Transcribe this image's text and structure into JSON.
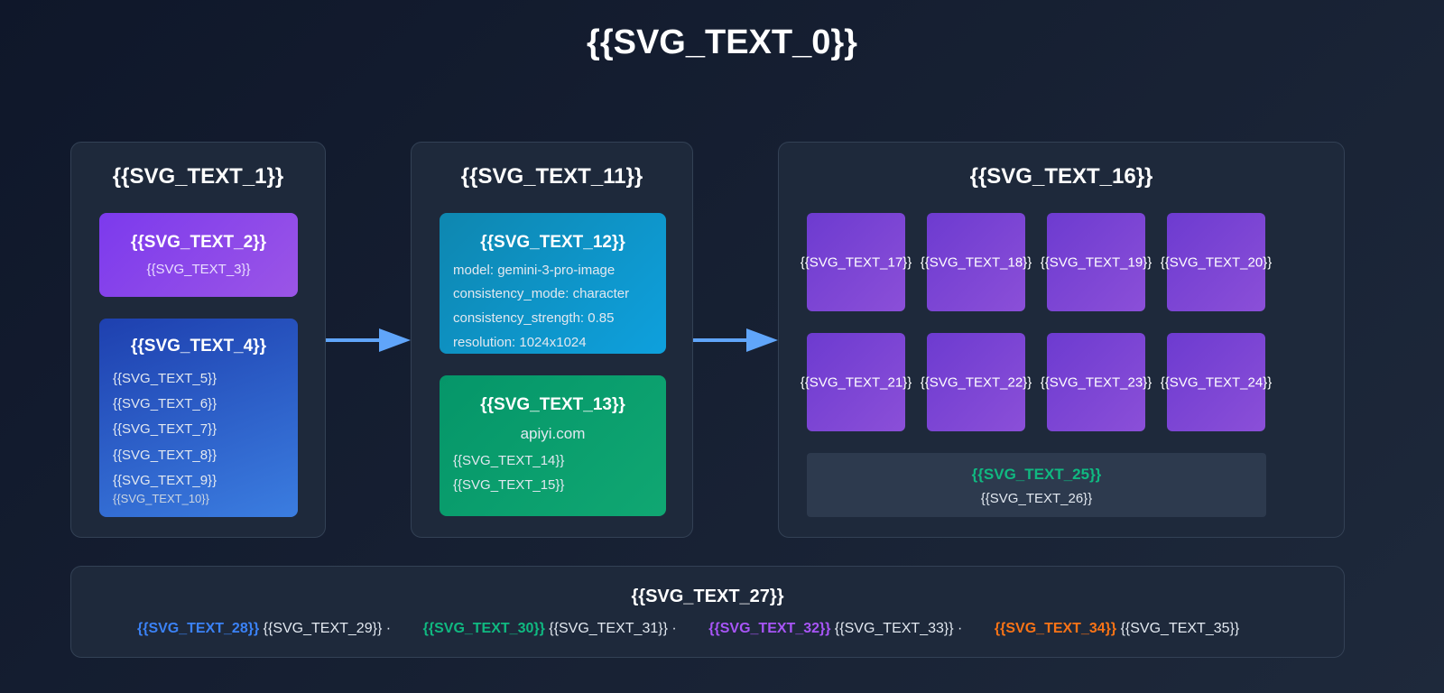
{
  "title": "{{SVG_TEXT_0}}",
  "input_panel": {
    "title": "{{SVG_TEXT_1}}",
    "reference": {
      "title": "{{SVG_TEXT_2}}",
      "subtitle": "{{SVG_TEXT_3}}"
    },
    "prompts": {
      "title": "{{SVG_TEXT_4}}",
      "lines": [
        "{{SVG_TEXT_5}}",
        "{{SVG_TEXT_6}}",
        "{{SVG_TEXT_7}}",
        "{{SVG_TEXT_8}}",
        "{{SVG_TEXT_9}}"
      ],
      "note": "{{SVG_TEXT_10}}"
    }
  },
  "process_panel": {
    "title": "{{SVG_TEXT_11}}",
    "config": {
      "title": "{{SVG_TEXT_12}}",
      "lines": [
        "model: gemini-3-pro-image",
        "consistency_mode: character",
        "consistency_strength: 0.85",
        "resolution: 1024x1024"
      ]
    },
    "api": {
      "title": "{{SVG_TEXT_13}}",
      "domain": "apiyi.com",
      "lines": [
        "{{SVG_TEXT_14}}",
        "{{SVG_TEXT_15}}"
      ]
    }
  },
  "output_panel": {
    "title": "{{SVG_TEXT_16}}",
    "tiles": [
      "{{SVG_TEXT_17}}",
      "{{SVG_TEXT_18}}",
      "{{SVG_TEXT_19}}",
      "{{SVG_TEXT_20}}",
      "{{SVG_TEXT_21}}",
      "{{SVG_TEXT_22}}",
      "{{SVG_TEXT_23}}",
      "{{SVG_TEXT_24}}"
    ],
    "summary": {
      "title": "{{SVG_TEXT_25}}",
      "subtitle": "{{SVG_TEXT_26}}"
    }
  },
  "footer": {
    "title": "{{SVG_TEXT_27}}",
    "items": [
      {
        "key": "{{SVG_TEXT_28}}",
        "value": "{{SVG_TEXT_29}}",
        "color": "#3b82f6"
      },
      {
        "key": "{{SVG_TEXT_30}}",
        "value": "{{SVG_TEXT_31}}",
        "color": "#10b981"
      },
      {
        "key": "{{SVG_TEXT_32}}",
        "value": "{{SVG_TEXT_33}}",
        "color": "#a855f7"
      },
      {
        "key": "{{SVG_TEXT_34}}",
        "value": "{{SVG_TEXT_35}}",
        "color": "#f97316"
      }
    ]
  },
  "colors": {
    "reference": "#7c3aed",
    "prompts": "#2563eb",
    "config": "#0891b2",
    "api": "#059669",
    "summary_title": "#10b981",
    "arrow": "#60a5fa"
  }
}
